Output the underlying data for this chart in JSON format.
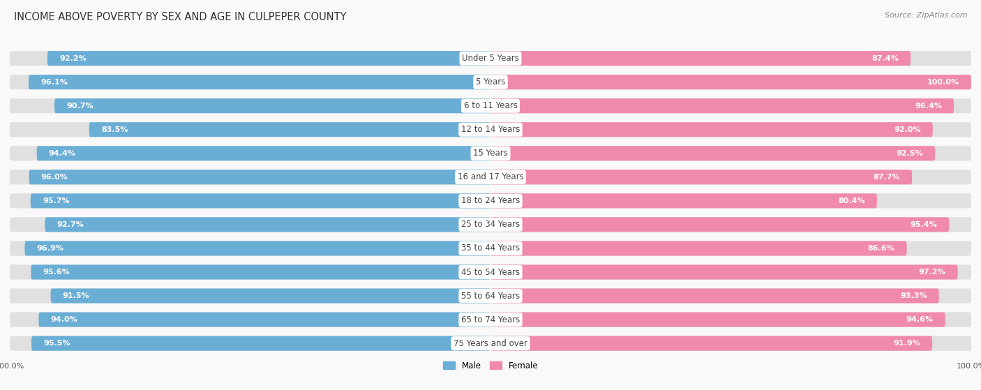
{
  "title": "INCOME ABOVE POVERTY BY SEX AND AGE IN CULPEPER COUNTY",
  "source": "Source: ZipAtlas.com",
  "categories": [
    "Under 5 Years",
    "5 Years",
    "6 to 11 Years",
    "12 to 14 Years",
    "15 Years",
    "16 and 17 Years",
    "18 to 24 Years",
    "25 to 34 Years",
    "35 to 44 Years",
    "45 to 54 Years",
    "55 to 64 Years",
    "65 to 74 Years",
    "75 Years and over"
  ],
  "male": [
    92.2,
    96.1,
    90.7,
    83.5,
    94.4,
    96.0,
    95.7,
    92.7,
    96.9,
    95.6,
    91.5,
    94.0,
    95.5
  ],
  "female": [
    87.4,
    100.0,
    96.4,
    92.0,
    92.5,
    87.7,
    80.4,
    95.4,
    86.6,
    97.2,
    93.3,
    94.6,
    91.9
  ],
  "male_color": "#6aaed6",
  "female_color": "#f08aaa",
  "male_label": "Male",
  "female_label": "Female",
  "background_color": "#f0f0f0",
  "bar_bg_color": "#e0e0e0",
  "title_fontsize": 10.5,
  "label_fontsize": 8.5,
  "value_fontsize": 8.0,
  "source_fontsize": 8,
  "axis_label_fontsize": 8,
  "max_value": 100.0
}
